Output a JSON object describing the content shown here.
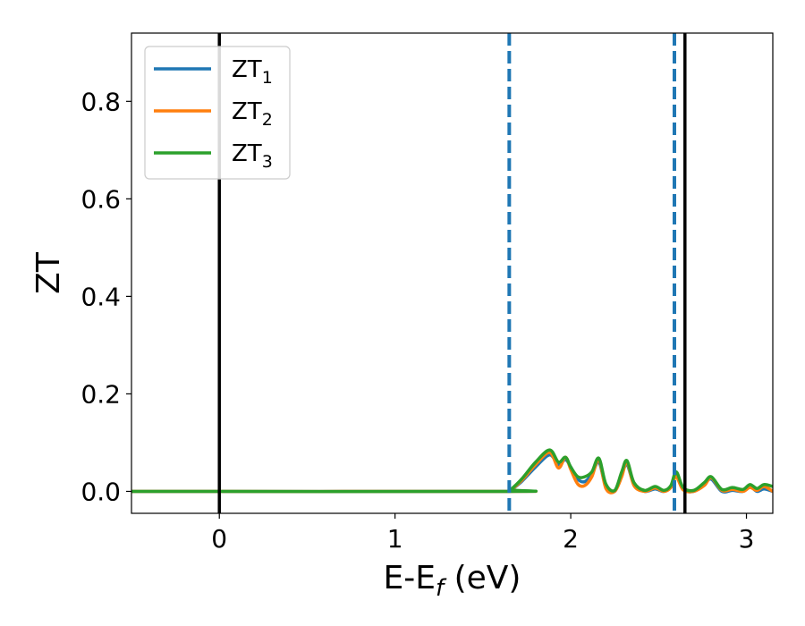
{
  "chart_data": {
    "type": "line",
    "xlabel_main": "E-E",
    "xlabel_sub": "f",
    "xlabel_unit": " (eV)",
    "ylabel": "ZT",
    "xlim": [
      -0.5,
      3.15
    ],
    "ylim": [
      -0.045,
      0.94
    ],
    "xticks": [
      0,
      1,
      2,
      3
    ],
    "xtick_labels": [
      "0",
      "1",
      "2",
      "3"
    ],
    "yticks": [
      0.0,
      0.2,
      0.4,
      0.6,
      0.8
    ],
    "ytick_labels": [
      "0.0",
      "0.2",
      "0.4",
      "0.6",
      "0.8"
    ],
    "grid": false,
    "legend_position": "top-left",
    "vlines": [
      {
        "x": 0.0,
        "style": "solid",
        "color": "#000000"
      },
      {
        "x": 1.65,
        "style": "dashed",
        "color": "#1f77b4"
      },
      {
        "x": 2.59,
        "style": "dashed",
        "color": "#1f77b4"
      },
      {
        "x": 2.65,
        "style": "solid",
        "color": "#000000"
      }
    ],
    "series": [
      {
        "name": "ZT",
        "subscript": "1",
        "color": "#1f77b4",
        "x": [
          -0.5,
          1.64,
          1.66,
          1.72,
          1.8,
          1.88,
          1.93,
          1.97,
          2.0,
          2.04,
          2.08,
          2.12,
          2.16,
          2.2,
          2.25,
          2.29,
          2.32,
          2.36,
          2.42,
          2.48,
          2.53,
          2.57,
          2.6,
          2.64,
          2.7,
          2.76,
          2.8,
          2.86,
          2.92,
          2.98,
          3.02,
          3.06,
          3.1,
          3.15
        ],
        "y": [
          0.0,
          0.0,
          0.003,
          0.02,
          0.05,
          0.075,
          0.055,
          0.065,
          0.05,
          0.025,
          0.02,
          0.035,
          0.06,
          0.01,
          0.0,
          0.035,
          0.055,
          0.015,
          0.0,
          0.005,
          0.0,
          0.01,
          0.035,
          0.005,
          0.0,
          0.015,
          0.025,
          0.0,
          0.002,
          0.0,
          0.01,
          0.0,
          0.005,
          0.0
        ]
      },
      {
        "name": "ZT",
        "subscript": "2",
        "color": "#ff7f0e",
        "x": [
          -0.5,
          1.64,
          1.66,
          1.72,
          1.8,
          1.88,
          1.93,
          1.97,
          2.0,
          2.04,
          2.08,
          2.12,
          2.16,
          2.2,
          2.25,
          2.29,
          2.32,
          2.36,
          2.42,
          2.48,
          2.53,
          2.57,
          2.6,
          2.64,
          2.7,
          2.76,
          2.8,
          2.86,
          2.92,
          2.98,
          3.02,
          3.06,
          3.1,
          3.15
        ],
        "y": [
          0.0,
          0.0,
          0.003,
          0.022,
          0.055,
          0.08,
          0.048,
          0.07,
          0.045,
          0.015,
          0.012,
          0.03,
          0.065,
          0.006,
          0.0,
          0.03,
          0.06,
          0.012,
          0.0,
          0.007,
          0.0,
          0.008,
          0.03,
          0.003,
          0.0,
          0.012,
          0.028,
          0.002,
          0.004,
          0.0,
          0.008,
          0.002,
          0.01,
          0.0
        ]
      },
      {
        "name": "ZT",
        "subscript": "3",
        "color": "#2ca02c",
        "x": [
          -0.5,
          1.64,
          1.66,
          1.72,
          1.8,
          1.88,
          1.93,
          1.97,
          2.0,
          2.04,
          2.08,
          2.12,
          2.16,
          2.2,
          2.25,
          2.29,
          2.32,
          2.36,
          2.42,
          2.48,
          2.53,
          2.57,
          2.6,
          2.64,
          2.7,
          2.76,
          2.8,
          2.86,
          2.92,
          2.98,
          3.02,
          3.06,
          3.1,
          3.15
        ],
        "y": [
          0.0,
          0.0,
          0.004,
          0.025,
          0.06,
          0.085,
          0.06,
          0.07,
          0.05,
          0.03,
          0.03,
          0.04,
          0.068,
          0.015,
          0.002,
          0.04,
          0.063,
          0.018,
          0.002,
          0.01,
          0.002,
          0.012,
          0.04,
          0.008,
          0.002,
          0.018,
          0.03,
          0.004,
          0.008,
          0.004,
          0.014,
          0.006,
          0.014,
          0.01
        ]
      }
    ]
  }
}
